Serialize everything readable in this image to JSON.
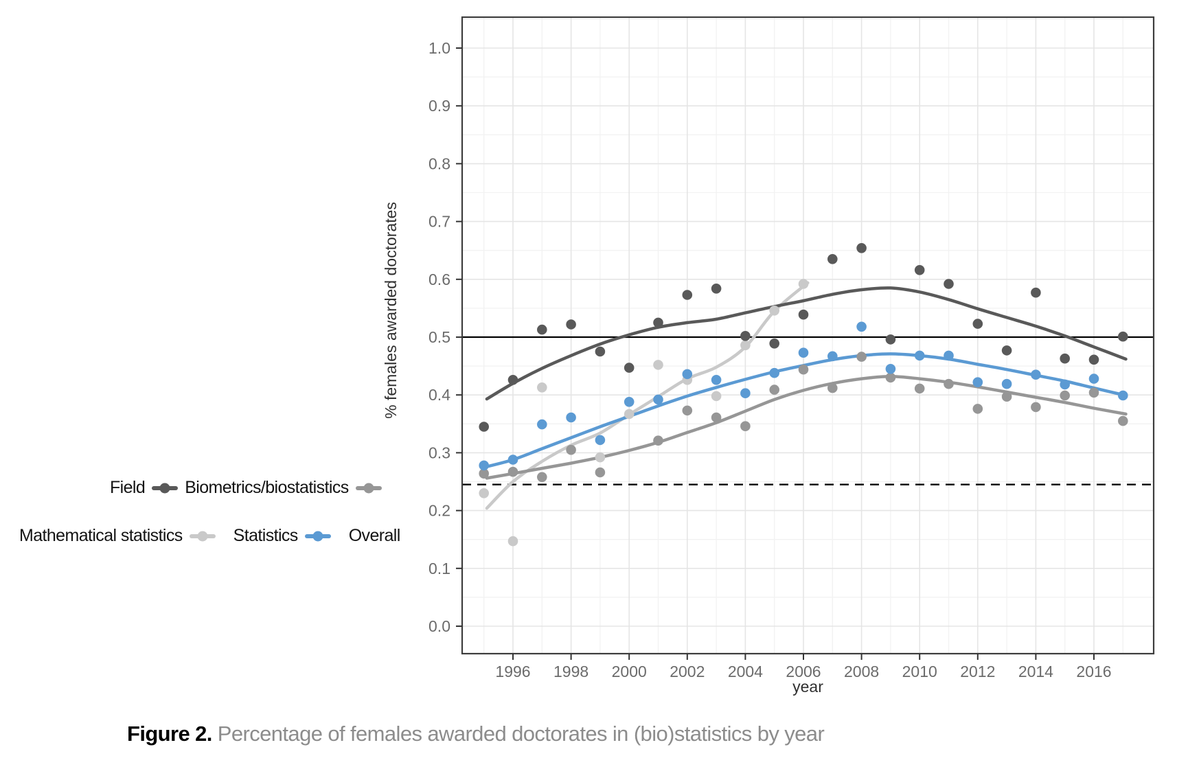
{
  "figure": {
    "caption_label": "Figure 2.",
    "caption_text": "Percentage of females awarded doctorates in (bio)statistics by year"
  },
  "chart_data": {
    "type": "scatter",
    "title": "",
    "xlabel": "year",
    "ylabel": "% females awarded doctorates",
    "legend_title": "Field",
    "legend_position": "left",
    "grid": true,
    "xlim": [
      1994.25,
      2018.05
    ],
    "ylim": [
      -0.047,
      1.053
    ],
    "x_ticks": [
      1996,
      1998,
      2000,
      2002,
      2004,
      2006,
      2008,
      2010,
      2012,
      2014,
      2016
    ],
    "y_ticks": [
      1.0,
      0.9,
      0.8,
      0.7,
      0.6,
      0.5,
      0.4,
      0.3,
      0.2,
      0.1,
      0.0
    ],
    "reference_lines": [
      {
        "value": 0.5,
        "style": "solid",
        "color": "#000000"
      },
      {
        "value": 0.245,
        "style": "dashed",
        "color": "#000000"
      }
    ],
    "series": [
      {
        "name": "Biometrics/biostatistics",
        "color": "#595959",
        "points": [
          [
            1995,
            0.345
          ],
          [
            1996,
            0.426
          ],
          [
            1997,
            0.513
          ],
          [
            1998,
            0.522
          ],
          [
            1999,
            0.475
          ],
          [
            2000,
            0.447
          ],
          [
            2001,
            0.525
          ],
          [
            2002,
            0.573
          ],
          [
            2003,
            0.584
          ],
          [
            2004,
            0.502
          ],
          [
            2005,
            0.489
          ],
          [
            2006,
            0.539
          ],
          [
            2007,
            0.635
          ],
          [
            2008,
            0.654
          ],
          [
            2009,
            0.496
          ],
          [
            2010,
            0.616
          ],
          [
            2011,
            0.592
          ],
          [
            2012,
            0.523
          ],
          [
            2013,
            0.477
          ],
          [
            2014,
            0.577
          ],
          [
            2015,
            0.463
          ],
          [
            2016,
            0.461
          ],
          [
            2017,
            0.501
          ]
        ],
        "trend": [
          [
            1995.1,
            0.393
          ],
          [
            1996,
            0.42
          ],
          [
            1997,
            0.446
          ],
          [
            1998,
            0.468
          ],
          [
            1999,
            0.488
          ],
          [
            2000,
            0.504
          ],
          [
            2001,
            0.517
          ],
          [
            2002,
            0.525
          ],
          [
            2003,
            0.531
          ],
          [
            2004,
            0.542
          ],
          [
            2005,
            0.553
          ],
          [
            2006,
            0.563
          ],
          [
            2007,
            0.574
          ],
          [
            2008,
            0.582
          ],
          [
            2009,
            0.585
          ],
          [
            2010,
            0.578
          ],
          [
            2011,
            0.565
          ],
          [
            2012,
            0.549
          ],
          [
            2013,
            0.534
          ],
          [
            2014,
            0.519
          ],
          [
            2015,
            0.502
          ],
          [
            2016,
            0.483
          ],
          [
            2017.1,
            0.462
          ]
        ]
      },
      {
        "name": "Mathematical statistics",
        "color": "#969696",
        "points": [
          [
            1995,
            0.264
          ],
          [
            1996,
            0.267
          ],
          [
            1997,
            0.258
          ],
          [
            1998,
            0.305
          ],
          [
            1999,
            0.266
          ],
          [
            2001,
            0.321
          ],
          [
            2002,
            0.373
          ],
          [
            2003,
            0.361
          ],
          [
            2004,
            0.346
          ],
          [
            2005,
            0.409
          ],
          [
            2006,
            0.444
          ],
          [
            2007,
            0.412
          ],
          [
            2008,
            0.466
          ],
          [
            2009,
            0.43
          ],
          [
            2010,
            0.411
          ],
          [
            2011,
            0.419
          ],
          [
            2012,
            0.376
          ],
          [
            2013,
            0.397
          ],
          [
            2014,
            0.379
          ],
          [
            2015,
            0.399
          ],
          [
            2016,
            0.404
          ],
          [
            2017,
            0.355
          ]
        ],
        "trend": [
          [
            1995.1,
            0.256
          ],
          [
            1996,
            0.264
          ],
          [
            1997,
            0.273
          ],
          [
            1998,
            0.282
          ],
          [
            1999,
            0.292
          ],
          [
            2000,
            0.304
          ],
          [
            2001,
            0.318
          ],
          [
            2002,
            0.335
          ],
          [
            2003,
            0.352
          ],
          [
            2004,
            0.372
          ],
          [
            2005,
            0.392
          ],
          [
            2006,
            0.408
          ],
          [
            2007,
            0.42
          ],
          [
            2008,
            0.428
          ],
          [
            2009,
            0.432
          ],
          [
            2010,
            0.428
          ],
          [
            2011,
            0.422
          ],
          [
            2012,
            0.414
          ],
          [
            2013,
            0.405
          ],
          [
            2014,
            0.396
          ],
          [
            2015,
            0.387
          ],
          [
            2016,
            0.377
          ],
          [
            2017.1,
            0.367
          ]
        ]
      },
      {
        "name": "Statistics",
        "color": "#c9c9c9",
        "points": [
          [
            1995,
            0.23
          ],
          [
            1996,
            0.147
          ],
          [
            1997,
            0.413
          ],
          [
            1999,
            0.292
          ],
          [
            2000,
            0.367
          ],
          [
            2001,
            0.452
          ],
          [
            2002,
            0.426
          ],
          [
            2003,
            0.398
          ],
          [
            2004,
            0.486
          ],
          [
            2005,
            0.546
          ],
          [
            2006,
            0.592
          ]
        ],
        "trend": [
          [
            1995.1,
            0.204
          ],
          [
            1996,
            0.25
          ],
          [
            1997,
            0.285
          ],
          [
            1998,
            0.313
          ],
          [
            1999,
            0.334
          ],
          [
            2000,
            0.366
          ],
          [
            2001,
            0.397
          ],
          [
            2002,
            0.428
          ],
          [
            2003,
            0.448
          ],
          [
            2004,
            0.483
          ],
          [
            2005,
            0.545
          ],
          [
            2006.15,
            0.594
          ]
        ]
      },
      {
        "name": "Overall",
        "color": "#5b9ad3",
        "points": [
          [
            1995,
            0.278
          ],
          [
            1996,
            0.288
          ],
          [
            1997,
            0.349
          ],
          [
            1998,
            0.361
          ],
          [
            1999,
            0.322
          ],
          [
            2000,
            0.388
          ],
          [
            2001,
            0.392
          ],
          [
            2002,
            0.436
          ],
          [
            2003,
            0.426
          ],
          [
            2004,
            0.403
          ],
          [
            2005,
            0.438
          ],
          [
            2006,
            0.473
          ],
          [
            2007,
            0.467
          ],
          [
            2008,
            0.518
          ],
          [
            2009,
            0.445
          ],
          [
            2010,
            0.468
          ],
          [
            2011,
            0.468
          ],
          [
            2012,
            0.422
          ],
          [
            2013,
            0.419
          ],
          [
            2014,
            0.435
          ],
          [
            2015,
            0.418
          ],
          [
            2016,
            0.428
          ],
          [
            2017,
            0.399
          ]
        ],
        "trend": [
          [
            1995.1,
            0.276
          ],
          [
            1996,
            0.288
          ],
          [
            1997,
            0.307
          ],
          [
            1998,
            0.326
          ],
          [
            1999,
            0.345
          ],
          [
            2000,
            0.363
          ],
          [
            2001,
            0.381
          ],
          [
            2002,
            0.398
          ],
          [
            2003,
            0.413
          ],
          [
            2004,
            0.427
          ],
          [
            2005,
            0.44
          ],
          [
            2006,
            0.451
          ],
          [
            2007,
            0.461
          ],
          [
            2008,
            0.468
          ],
          [
            2009,
            0.471
          ],
          [
            2010,
            0.468
          ],
          [
            2011,
            0.462
          ],
          [
            2012,
            0.453
          ],
          [
            2013,
            0.444
          ],
          [
            2014,
            0.434
          ],
          [
            2015,
            0.424
          ],
          [
            2016,
            0.412
          ],
          [
            2017.1,
            0.399
          ]
        ]
      }
    ]
  }
}
